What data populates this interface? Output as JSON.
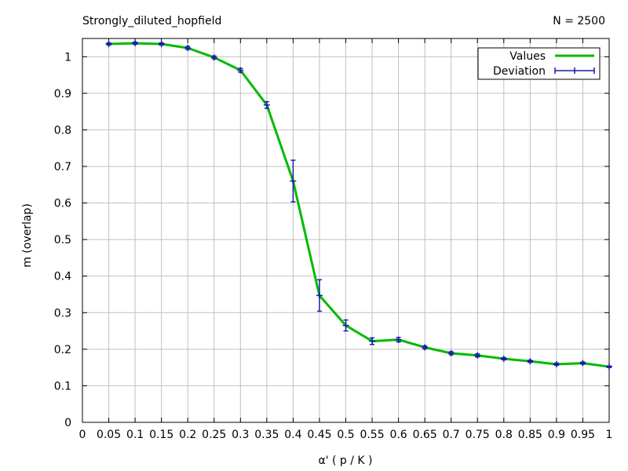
{
  "chart_data": {
    "type": "line",
    "title": "Strongly_diluted_hopfield",
    "annotation": "N = 2500",
    "xlabel": "α'   ( p / K )",
    "ylabel": "m (overlap)",
    "xlim": [
      0,
      1
    ],
    "ylim": [
      0,
      1.05
    ],
    "x_ticks": [
      0,
      0.05,
      0.1,
      0.15,
      0.2,
      0.25,
      0.3,
      0.35,
      0.4,
      0.45,
      0.5,
      0.55,
      0.6,
      0.65,
      0.7,
      0.75,
      0.8,
      0.85,
      0.9,
      0.95,
      1
    ],
    "x_tick_labels": [
      "0",
      "0.05",
      "0.1",
      "0.15",
      "0.2",
      "0.25",
      "0.3",
      "0.35",
      "0.4",
      "0.45",
      "0.5",
      "0.55",
      "0.6",
      "0.65",
      "0.7",
      "0.75",
      "0.8",
      "0.85",
      "0.9",
      "0.95",
      "1"
    ],
    "y_ticks": [
      0,
      0.1,
      0.2,
      0.3,
      0.4,
      0.5,
      0.6,
      0.7,
      0.8,
      0.9,
      1
    ],
    "y_tick_labels": [
      "0",
      "0.1",
      "0.2",
      "0.3",
      "0.4",
      "0.5",
      "0.6",
      "0.7",
      "0.8",
      "0.9",
      "1"
    ],
    "grid": true,
    "legend_position": "top-right",
    "x": [
      0.05,
      0.1,
      0.15,
      0.2,
      0.25,
      0.3,
      0.35,
      0.4,
      0.45,
      0.5,
      0.55,
      0.6,
      0.65,
      0.7,
      0.75,
      0.8,
      0.85,
      0.9,
      0.95,
      1.0
    ],
    "series": [
      {
        "name": "Values",
        "color": "#00bb00",
        "values": [
          1.035,
          1.037,
          1.035,
          1.024,
          0.998,
          0.963,
          0.868,
          0.66,
          0.347,
          0.265,
          0.222,
          0.226,
          0.205,
          0.189,
          0.183,
          0.174,
          0.167,
          0.159,
          0.162,
          0.152
        ]
      },
      {
        "name": "Deviation",
        "color": "#1a1aaa",
        "values": [
          1.035,
          1.037,
          1.035,
          1.024,
          0.998,
          0.963,
          0.868,
          0.66,
          0.347,
          0.265,
          0.222,
          0.226,
          0.205,
          0.189,
          0.183,
          0.174,
          0.167,
          0.159,
          0.162,
          0.152
        ],
        "errors": [
          0.003,
          0.003,
          0.003,
          0.004,
          0.004,
          0.005,
          0.009,
          0.057,
          0.043,
          0.015,
          0.009,
          0.006,
          0.004,
          0.004,
          0.004,
          0.003,
          0.003,
          0.003,
          0.003,
          0.002
        ]
      }
    ]
  }
}
